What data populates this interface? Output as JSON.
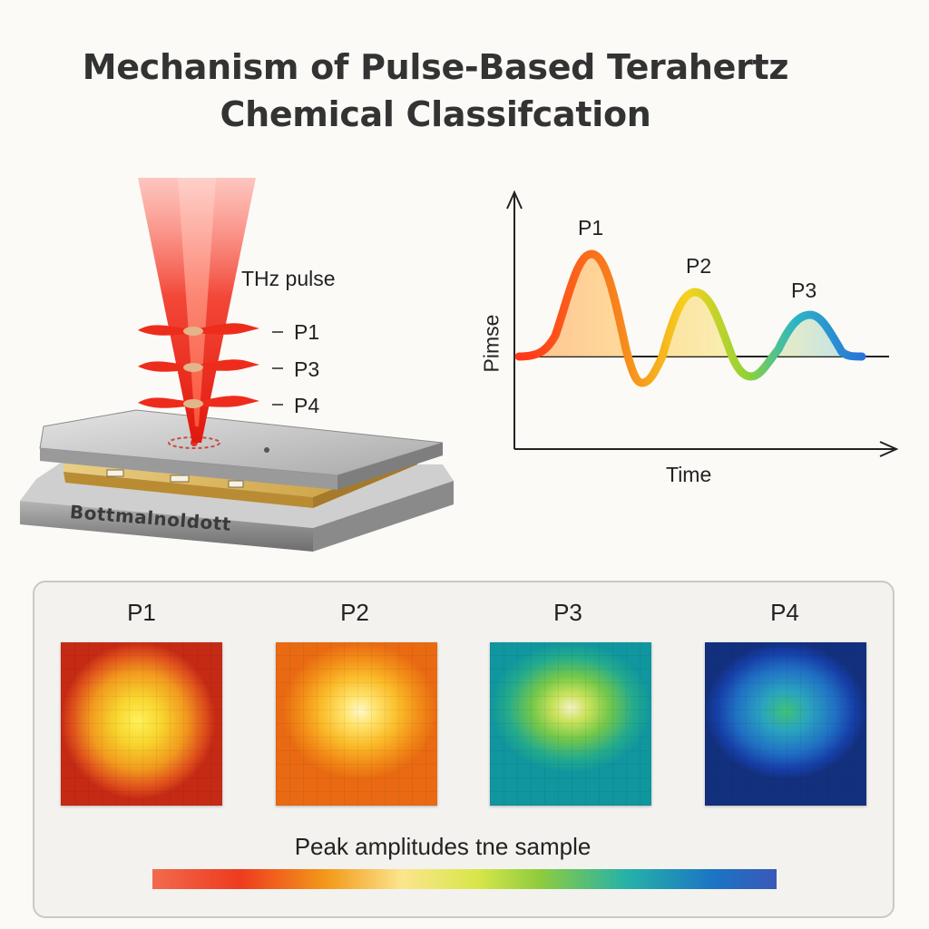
{
  "title": {
    "line1": "Mechanism of Pulse-Based Terahertz",
    "line2": "Chemical Classifcation"
  },
  "apparatus": {
    "beam_label": "THz pulse",
    "markers": [
      "P1",
      "P3",
      "P4"
    ],
    "base_label": "Bottmalnoldott"
  },
  "waveform_plot": {
    "y_axis_label": "Pimse",
    "x_axis_label": "Time",
    "peak_labels": [
      "P1",
      "P2",
      "P3"
    ],
    "colors": {
      "p1": "#f0541e",
      "p2": "#9ad233",
      "p3": "#2a86d2"
    }
  },
  "maps_panel": {
    "labels": [
      "P1",
      "P2",
      "P3",
      "P4"
    ],
    "colorbar_caption": "Peak amplitudes tne sample"
  }
}
